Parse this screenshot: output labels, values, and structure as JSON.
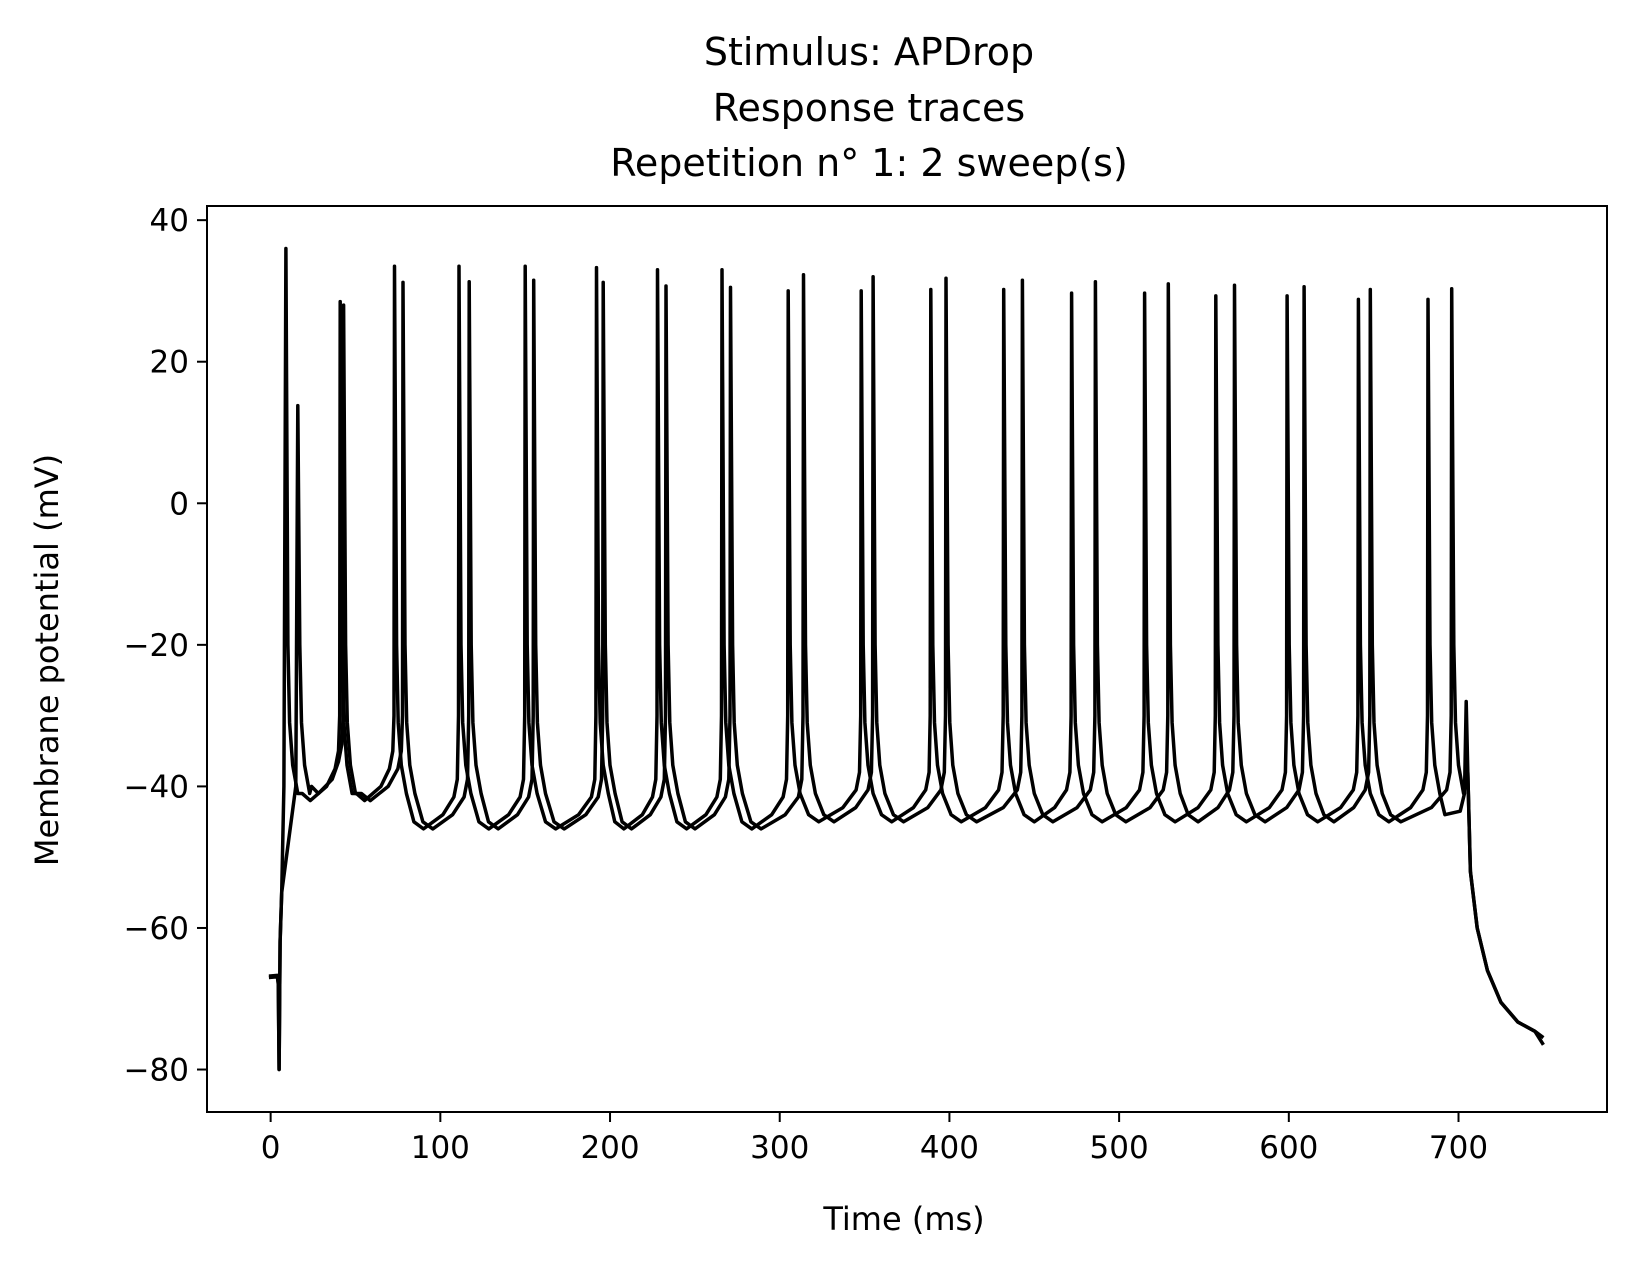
{
  "chart_data": {
    "type": "line",
    "title": [
      "Stimulus: APDrop",
      "Response traces",
      "Repetition n° 1: 2 sweep(s)"
    ],
    "xlabel": "Time (ms)",
    "ylabel": "Membrane potential (mV)",
    "xlim": [
      -37.5,
      787.5
    ],
    "ylim": [
      -86,
      42
    ],
    "xticks": [
      0,
      100,
      200,
      300,
      400,
      500,
      600,
      700
    ],
    "yticks": [
      -80,
      -60,
      -40,
      -20,
      0,
      20,
      40
    ],
    "xtick_labels": [
      "0",
      "100",
      "200",
      "300",
      "400",
      "500",
      "600",
      "700"
    ],
    "ytick_labels": [
      "−80",
      "−60",
      "−40",
      "−20",
      "0",
      "20",
      "40"
    ],
    "grid": false,
    "line_color": "#000000",
    "series": [
      {
        "spike_times": [
          9,
          41,
          73,
          111,
          150,
          192,
          228,
          266,
          305,
          348,
          389,
          432,
          472,
          515,
          557,
          599,
          641,
          682
        ],
        "spike_peaks": [
          36,
          28.5,
          33.5,
          33.5,
          33.5,
          33.3,
          33.0,
          33.0,
          30.0,
          30.0,
          30.2,
          30.2,
          29.7,
          29.7,
          29.3,
          29.3,
          28.8,
          28.8
        ],
        "trough_after_spikes": [
          -42,
          -42,
          -46,
          -46,
          -46,
          -46,
          -46,
          -46,
          -45,
          -45,
          -45,
          -45,
          -45,
          -45,
          -45,
          -45,
          -45,
          -44
        ],
        "rest": -67,
        "onset_dip": -80,
        "stim_end": 705,
        "final": -76.5
      },
      {
        "spike_times": [
          16,
          43,
          78,
          117,
          155,
          196,
          233,
          271,
          314,
          355,
          398,
          443,
          486,
          529,
          568,
          609,
          648,
          696
        ],
        "spike_peaks": [
          13.8,
          28.0,
          31.2,
          31.3,
          31.5,
          31.2,
          30.7,
          30.5,
          32.3,
          32.0,
          31.8,
          31.5,
          31.3,
          31.0,
          30.8,
          30.6,
          30.2,
          30.3
        ],
        "trough_after_spikes": [
          -41,
          -42,
          -46,
          -46,
          -46,
          -46,
          -46,
          -46,
          -45,
          -45,
          -45,
          -45,
          -45,
          -45,
          -45,
          -45,
          -45,
          -44
        ],
        "rest": -66.8,
        "onset_dip": -80,
        "stim_end": 705,
        "final": -75.5
      }
    ]
  }
}
